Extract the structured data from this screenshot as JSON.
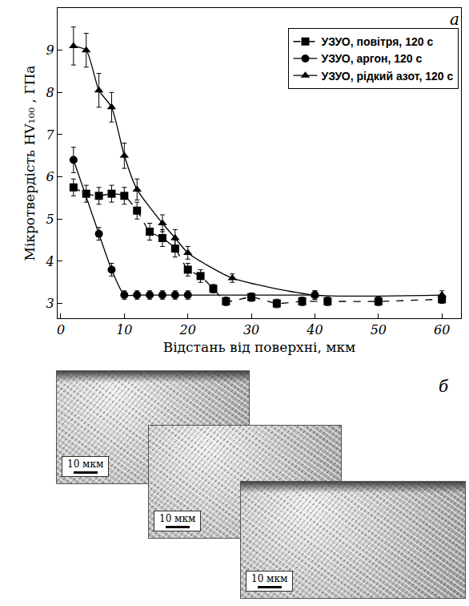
{
  "chart_data": {
    "type": "line",
    "annotations": [
      "а"
    ],
    "x_label": "Відстань від поверхні, мкм",
    "y_label": "Мікротвердість HV₁₀₀ , ГПа",
    "xlim": [
      -0.5,
      63
    ],
    "ylim": [
      2.65,
      10
    ],
    "xticks": [
      0,
      10,
      20,
      30,
      40,
      50,
      60
    ],
    "yticks": [
      3,
      4,
      5,
      6,
      7,
      8,
      9
    ],
    "grid": false,
    "legend": "upper right",
    "series": [
      {
        "name": "УЗУО, повітря, 120 с",
        "color": "#000000",
        "marker": "square",
        "line_style": "dashed",
        "x": [
          2,
          4,
          6,
          8,
          10,
          12,
          14,
          16,
          18,
          20,
          22,
          24,
          26,
          30,
          34,
          38,
          42,
          50,
          60
        ],
        "values": [
          5.75,
          5.6,
          5.55,
          5.6,
          5.55,
          5.2,
          4.7,
          4.55,
          4.3,
          3.8,
          3.65,
          3.35,
          3.05,
          3.15,
          3.0,
          3.05,
          3.05,
          3.05,
          3.1
        ],
        "errors": [
          0.2,
          0.2,
          0.2,
          0.2,
          0.2,
          0.2,
          0.2,
          0.2,
          0.2,
          0.15,
          0.15,
          0.1,
          0.1,
          0.1,
          0.1,
          0.1,
          0.1,
          0.1,
          0.1
        ]
      },
      {
        "name": "УЗУО, аргон, 120 с",
        "color": "#000000",
        "marker": "circle",
        "line_style": "solid",
        "x": [
          2,
          6,
          8,
          10,
          12,
          14,
          16,
          18,
          20,
          40
        ],
        "values": [
          6.4,
          4.65,
          3.8,
          3.2,
          3.2,
          3.2,
          3.2,
          3.2,
          3.2,
          3.2
        ],
        "errors": [
          0.3,
          0.15,
          0.15,
          0.1,
          0.1,
          0.1,
          0.1,
          0.1,
          0.1,
          0.1
        ]
      },
      {
        "name": "УЗУО, рідкий азот, 120 с",
        "color": "#000000",
        "marker": "triangle-up",
        "line_style": "solid",
        "x": [
          2,
          4,
          6,
          8,
          10,
          12,
          16,
          18,
          20,
          27,
          40,
          60
        ],
        "values": [
          9.1,
          9.0,
          8.05,
          7.65,
          6.5,
          5.7,
          4.9,
          4.55,
          4.2,
          3.6,
          3.2,
          3.2
        ],
        "errors": [
          0.45,
          0.4,
          0.4,
          0.35,
          0.3,
          0.25,
          0.2,
          0.2,
          0.15,
          0.1,
          0.1,
          0.1
        ]
      }
    ]
  },
  "micrographs": {
    "label": "б",
    "scale_bars": [
      "10 мкм",
      "10 мкм",
      "10 мкм"
    ]
  }
}
